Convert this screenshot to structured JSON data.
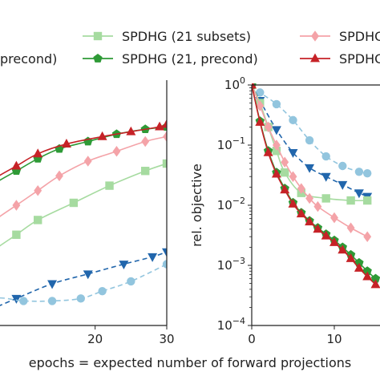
{
  "chart_data": [
    {
      "type": "line",
      "title": "",
      "xlabel": "epochs = expected number of forward projections",
      "ylabel": "",
      "xlim": [
        0,
        30
      ],
      "xticks": [
        {
          "v": 20,
          "label": "20"
        },
        {
          "v": 30,
          "label": "30"
        }
      ],
      "ylim": [
        0,
        1
      ],
      "series": [
        {
          "name": "SPDHG (21 subsets)",
          "color": "#a6dba0",
          "marker": "square",
          "dashed": false,
          "x": [
            0,
            2,
            4,
            6,
            9,
            12,
            17,
            22,
            27,
            30
          ],
          "y": [
            0.18,
            0.22,
            0.26,
            0.31,
            0.37,
            0.43,
            0.5,
            0.57,
            0.63,
            0.66
          ]
        },
        {
          "name": "SPDHG (21, precond)",
          "color": "#2e9a36",
          "marker": "pentagon",
          "dashed": false,
          "x": [
            0,
            1,
            3,
            6,
            9,
            12,
            15,
            19,
            23,
            27,
            30
          ],
          "y": [
            0.43,
            0.47,
            0.52,
            0.58,
            0.63,
            0.68,
            0.72,
            0.75,
            0.78,
            0.8,
            0.81
          ]
        },
        {
          "name": "SPDHG",
          "color": "#f4a3a8",
          "marker": "diamond",
          "dashed": false,
          "x": [
            0,
            3,
            6,
            9,
            12,
            15,
            19,
            23,
            27,
            30
          ],
          "y": [
            0.3,
            0.36,
            0.43,
            0.49,
            0.55,
            0.61,
            0.67,
            0.71,
            0.75,
            0.77
          ]
        },
        {
          "name": "SPDHG",
          "color": "#c62227",
          "marker": "triangle-up",
          "dashed": false,
          "x": [
            0,
            1,
            3,
            6,
            9,
            12,
            16,
            21,
            25,
            29,
            30
          ],
          "y": [
            0.45,
            0.49,
            0.54,
            0.6,
            0.65,
            0.7,
            0.74,
            0.77,
            0.79,
            0.81,
            0.82
          ]
        },
        {
          "name": "precond",
          "color": "#2166ac",
          "marker": "triangle-down",
          "dashed": true,
          "x": [
            0,
            4,
            9,
            14,
            19,
            24,
            28,
            30
          ],
          "y": [
            0.02,
            0.05,
            0.11,
            0.17,
            0.21,
            0.25,
            0.28,
            0.3
          ]
        },
        {
          "name": "",
          "color": "#92c5de",
          "marker": "circle",
          "dashed": true,
          "x": [
            0,
            3,
            6,
            10,
            14,
            18,
            21,
            25,
            30
          ],
          "y": [
            -0.05,
            0.05,
            0.11,
            0.1,
            0.1,
            0.11,
            0.14,
            0.18,
            0.25
          ]
        }
      ]
    },
    {
      "type": "line",
      "title": "",
      "xlabel": "",
      "ylabel": "rel. objective",
      "xlim": [
        0,
        20
      ],
      "ylim": [
        0.0001,
        1
      ],
      "yscale": "log",
      "xticks": [
        {
          "v": 0,
          "label": "0"
        },
        {
          "v": 10,
          "label": "10"
        }
      ],
      "yticks": [
        {
          "v": 1,
          "label": "10^0"
        },
        {
          "v": 0.1,
          "label": "10^-1"
        },
        {
          "v": 0.01,
          "label": "10^-2"
        },
        {
          "v": 0.001,
          "label": "10^-3"
        },
        {
          "v": 0.0001,
          "label": "10^-4"
        }
      ],
      "series": [
        {
          "color": "#92c5de",
          "marker": "circle",
          "dashed": true,
          "x": [
            0,
            1,
            3,
            5,
            7,
            9,
            11,
            13,
            14
          ],
          "y": [
            1.0,
            0.75,
            0.48,
            0.26,
            0.12,
            0.065,
            0.045,
            0.036,
            0.034
          ]
        },
        {
          "color": "#2166ac",
          "marker": "triangle-down",
          "dashed": true,
          "x": [
            0,
            1,
            3,
            5,
            7,
            9,
            11,
            13,
            14
          ],
          "y": [
            1.0,
            0.55,
            0.18,
            0.075,
            0.042,
            0.03,
            0.022,
            0.016,
            0.014
          ]
        },
        {
          "color": "#a6dba0",
          "marker": "square",
          "dashed": false,
          "x": [
            0,
            1,
            2,
            3,
            4,
            6,
            9,
            12,
            14
          ],
          "y": [
            1.0,
            0.5,
            0.2,
            0.08,
            0.035,
            0.016,
            0.013,
            0.012,
            0.012
          ]
        },
        {
          "color": "#f4a3a8",
          "marker": "diamond",
          "dashed": false,
          "x": [
            0,
            1,
            2,
            3,
            4,
            5,
            6,
            7,
            8,
            10,
            12,
            14
          ],
          "y": [
            1.0,
            0.45,
            0.2,
            0.1,
            0.052,
            0.03,
            0.019,
            0.013,
            0.0095,
            0.0062,
            0.0042,
            0.003
          ]
        },
        {
          "color": "#2e9a36",
          "marker": "pentagon",
          "dashed": false,
          "x": [
            0,
            1,
            2,
            3,
            4,
            5,
            6,
            7,
            8,
            9,
            10,
            11,
            12,
            13,
            14,
            15
          ],
          "y": [
            1.0,
            0.25,
            0.08,
            0.035,
            0.019,
            0.011,
            0.0075,
            0.0055,
            0.0042,
            0.0033,
            0.0026,
            0.002,
            0.0015,
            0.0011,
            0.0008,
            0.0006
          ]
        },
        {
          "color": "#c62227",
          "marker": "triangle-up",
          "dashed": false,
          "x": [
            0,
            1,
            2,
            3,
            4,
            5,
            6,
            7,
            8,
            9,
            10,
            11,
            12,
            13,
            14,
            15
          ],
          "y": [
            1.0,
            0.24,
            0.075,
            0.033,
            0.018,
            0.0105,
            0.0072,
            0.0053,
            0.004,
            0.0031,
            0.0024,
            0.0018,
            0.0013,
            0.0009,
            0.00065,
            0.00048
          ]
        }
      ]
    }
  ],
  "legend": {
    "entries": [
      {
        "label": "precond)",
        "color": "#2166ac",
        "marker": "triangle-down",
        "dashed": true
      },
      {
        "label": "SPDHG (21 subsets)",
        "color": "#a6dba0",
        "marker": "square",
        "dashed": false
      },
      {
        "label": "SPDHG (21, precond)",
        "color": "#2e9a36",
        "marker": "pentagon",
        "dashed": false
      },
      {
        "label": "SPDHG",
        "color": "#f4a3a8",
        "marker": "diamond",
        "dashed": false
      },
      {
        "label": "SPDHG",
        "color": "#c62227",
        "marker": "triangle-up",
        "dashed": false
      }
    ]
  }
}
